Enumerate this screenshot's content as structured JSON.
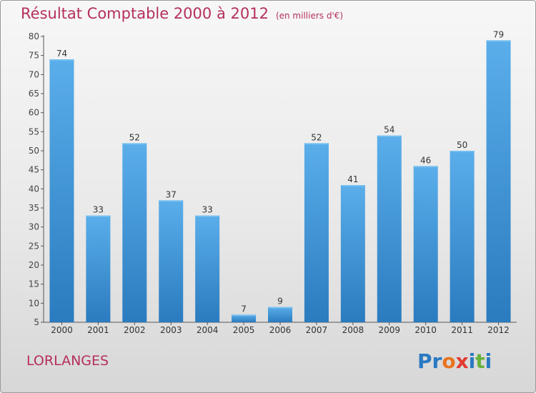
{
  "title": "Résultat Comptable 2000 à 2012",
  "subtitle": "(en milliers d'€)",
  "town": "LORLANGES",
  "logo": {
    "text": "Proxiti",
    "colors": [
      "#2a79c2",
      "#2a79c2",
      "#e8731e",
      "#e23a2f",
      "#2a79c2",
      "#66b23a",
      "#2a79c2"
    ]
  },
  "colors": {
    "bar_top": "#5aaeea",
    "bar_bottom": "#2a7bbf",
    "title": "#b5305a",
    "axis": "#555555"
  },
  "chart_data": {
    "type": "bar",
    "title": "Résultat Comptable 2000 à 2012",
    "ylabel": "en milliers d'€",
    "categories": [
      "2000",
      "2001",
      "2002",
      "2003",
      "2004",
      "2005",
      "2006",
      "2007",
      "2008",
      "2009",
      "2010",
      "2011",
      "2012"
    ],
    "values": [
      74,
      33,
      52,
      37,
      33,
      7,
      9,
      52,
      41,
      54,
      46,
      50,
      79
    ],
    "ylim": [
      5,
      80
    ],
    "yticks": [
      5,
      10,
      15,
      20,
      25,
      30,
      35,
      40,
      45,
      50,
      55,
      60,
      65,
      70,
      75,
      80
    ],
    "grid": false
  }
}
